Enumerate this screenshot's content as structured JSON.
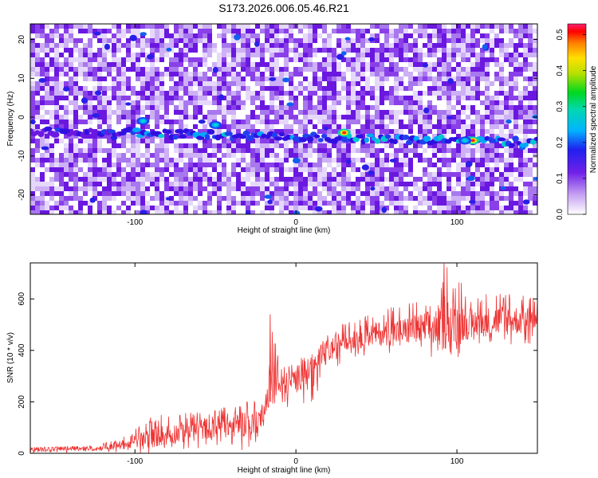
{
  "title": "S173.2026.006.05.46.R21",
  "chart_data": [
    {
      "type": "heatmap",
      "xlabel": "Height of straight line (km)",
      "ylabel": "Frequency (Hz)",
      "xlim": [
        -165,
        150
      ],
      "ylim": [
        -25,
        24
      ],
      "x_ticks": [
        -100,
        0,
        100
      ],
      "y_ticks": [
        -20,
        -10,
        0,
        10,
        20
      ],
      "colorbar": {
        "label": "Normalized spectral amplitude",
        "range": [
          0,
          0.53
        ],
        "ticks": [
          "0.0",
          "0.1",
          "0.2",
          "0.3",
          "0.4",
          "0.5"
        ],
        "tick_values": [
          0.0,
          0.1,
          0.2,
          0.3,
          0.4,
          0.5
        ]
      },
      "ridge": {
        "frequency_start": -3.5,
        "frequency_end": -6.5,
        "peaks": [
          {
            "x": 30,
            "y": -4,
            "amplitude": 0.45
          },
          {
            "x": 110,
            "y": -6,
            "amplitude": 0.42
          },
          {
            "x": 105,
            "y": -6,
            "amplitude": 0.2
          },
          {
            "x": -95,
            "y": -1,
            "amplitude": 0.18
          },
          {
            "x": -50,
            "y": -2,
            "amplitude": 0.15
          }
        ]
      }
    },
    {
      "type": "line",
      "xlabel": "Height of straight line (km)",
      "ylabel": "SNR (10 * v/v)",
      "xlim": [
        -165,
        150
      ],
      "ylim": [
        0,
        740
      ],
      "x_ticks": [
        -100,
        0,
        100
      ],
      "y_ticks": [
        0,
        200,
        400,
        600
      ],
      "series": [
        {
          "color": "#ee3333",
          "envelope": [
            {
              "x": -165,
              "low": 0,
              "high": 25,
              "mean": 15
            },
            {
              "x": -125,
              "low": 0,
              "high": 30,
              "mean": 15
            },
            {
              "x": -105,
              "low": 0,
              "high": 70,
              "mean": 30
            },
            {
              "x": -90,
              "low": 0,
              "high": 150,
              "mean": 50
            },
            {
              "x": -70,
              "low": 10,
              "high": 160,
              "mean": 70
            },
            {
              "x": -50,
              "low": 20,
              "high": 180,
              "mean": 90
            },
            {
              "x": -32,
              "low": 10,
              "high": 200,
              "mean": 100
            },
            {
              "x": -25,
              "low": 0,
              "high": 220,
              "mean": 80
            },
            {
              "x": -18,
              "low": 150,
              "high": 300,
              "mean": 200
            },
            {
              "x": -16,
              "low": 180,
              "high": 540,
              "mean": 250
            },
            {
              "x": -10,
              "low": 180,
              "high": 350,
              "mean": 240
            },
            {
              "x": 0,
              "low": 170,
              "high": 360,
              "mean": 270
            },
            {
              "x": 10,
              "low": 200,
              "high": 400,
              "mean": 320
            },
            {
              "x": 20,
              "low": 300,
              "high": 470,
              "mean": 380
            },
            {
              "x": 30,
              "low": 360,
              "high": 510,
              "mean": 430
            },
            {
              "x": 50,
              "low": 390,
              "high": 560,
              "mean": 450
            },
            {
              "x": 70,
              "low": 390,
              "high": 590,
              "mean": 460
            },
            {
              "x": 90,
              "low": 340,
              "high": 620,
              "mean": 470
            },
            {
              "x": 92,
              "low": 330,
              "high": 740,
              "mean": 480
            },
            {
              "x": 110,
              "low": 420,
              "high": 620,
              "mean": 490
            },
            {
              "x": 130,
              "low": 420,
              "high": 640,
              "mean": 500
            },
            {
              "x": 150,
              "low": 420,
              "high": 600,
              "mean": 500
            }
          ]
        }
      ]
    }
  ]
}
